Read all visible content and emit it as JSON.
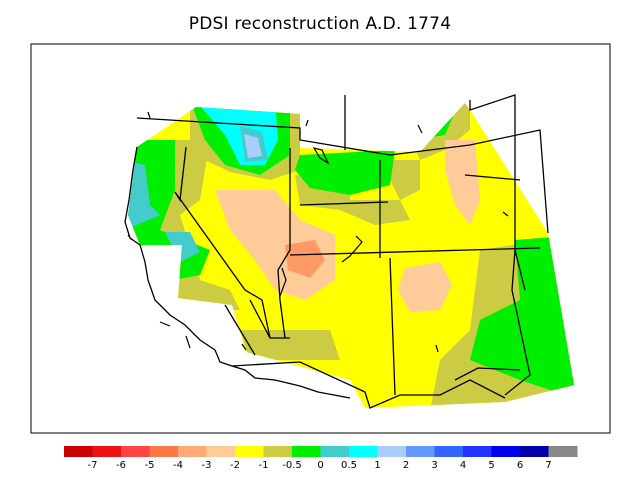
{
  "title": "PDSI reconstruction A.D. 1774",
  "map": {
    "region": "Western United States",
    "field": "PDSI",
    "year": "1774"
  },
  "legend": {
    "colors": [
      "#cc0000",
      "#ee1111",
      "#ff4444",
      "#ff7744",
      "#ffaa77",
      "#ffcc99",
      "#ffff00",
      "#cccc44",
      "#00ee00",
      "#44cccc",
      "#00ffff",
      "#aaccff",
      "#6699ff",
      "#3366ff",
      "#2233ff",
      "#0000ee",
      "#0000aa",
      "#888888"
    ],
    "ticks": [
      "-7",
      "-6",
      "-5",
      "-4",
      "-3",
      "-2",
      "-1",
      "-0.5",
      "0",
      "0.5",
      "1",
      "2",
      "3",
      "4",
      "5",
      "6",
      "7"
    ]
  }
}
